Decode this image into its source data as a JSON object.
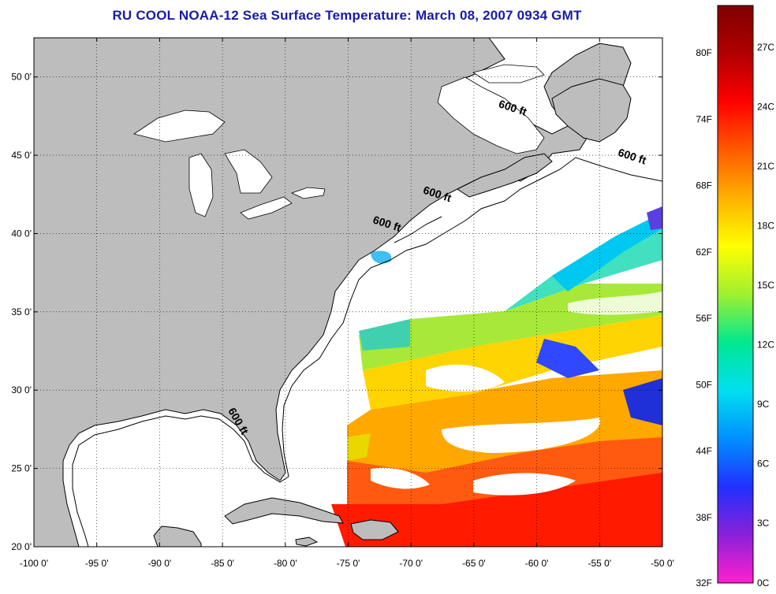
{
  "title": "RU COOL  NOAA-12  Sea Surface Temperature:  March 08, 2007 0934 GMT",
  "map": {
    "lon_range": [
      -100,
      -50
    ],
    "lat_range": [
      20,
      52.5
    ],
    "x_ticks": [
      {
        "value": -100,
        "label": "-100 0'"
      },
      {
        "value": -95,
        "label": "-95 0'"
      },
      {
        "value": -90,
        "label": "-90 0'"
      },
      {
        "value": -85,
        "label": "-85 0'"
      },
      {
        "value": -80,
        "label": "-80 0'"
      },
      {
        "value": -75,
        "label": "-75 0'"
      },
      {
        "value": -70,
        "label": "-70 0'"
      },
      {
        "value": -65,
        "label": "-65 0'"
      },
      {
        "value": -60,
        "label": "-60 0'"
      },
      {
        "value": -55,
        "label": "-55 0'"
      },
      {
        "value": -50,
        "label": "-50 0'"
      }
    ],
    "y_ticks": [
      {
        "value": 50,
        "label": "50 0'"
      },
      {
        "value": 45,
        "label": "45 0'"
      },
      {
        "value": 40,
        "label": "40 0'"
      },
      {
        "value": 35,
        "label": "35 0'"
      },
      {
        "value": 30,
        "label": "30 0'"
      },
      {
        "value": 25,
        "label": "25 0'"
      },
      {
        "value": 20,
        "label": "20 0'"
      }
    ],
    "grid": "dotted",
    "land_color": "#bdbdbd",
    "ocean_no_data_color": "#ffffff",
    "isobath_labels": [
      {
        "text": "600 ft",
        "lon": -62,
        "lat": 47.8
      },
      {
        "text": "600 ft",
        "lon": -52.5,
        "lat": 44.7
      },
      {
        "text": "600 ft",
        "lon": -68,
        "lat": 42.3
      },
      {
        "text": "600 ft",
        "lon": -72,
        "lat": 40.4
      },
      {
        "text": "600 ft",
        "lon": -84,
        "lat": 27.9
      }
    ]
  },
  "colorbar": {
    "fahrenheit_labels": [
      "80F",
      "74F",
      "68F",
      "62F",
      "56F",
      "50F",
      "44F",
      "38F",
      "32F"
    ],
    "celsius_labels": [
      "27C",
      "24C",
      "21C",
      "18C",
      "15C",
      "12C",
      "9C",
      "6C",
      "3C",
      "0C"
    ],
    "colors": [
      "#ff20d0",
      "#8a20d8",
      "#2030ff",
      "#0090ff",
      "#00e0f0",
      "#00e890",
      "#a0f030",
      "#ffff00",
      "#ffb000",
      "#ff5a00",
      "#ff0000",
      "#b00000",
      "#800000"
    ]
  }
}
